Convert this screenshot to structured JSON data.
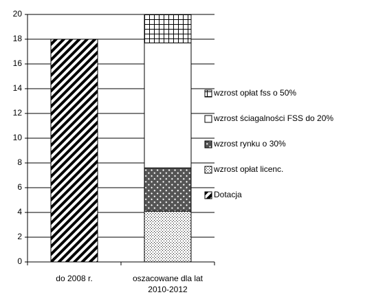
{
  "chart_data": {
    "type": "stacked_bar",
    "categories": [
      "do 2008 r.",
      "oszacowane dla lat 2010-2012"
    ],
    "series": [
      {
        "name": "Dotacja",
        "color": "#000000",
        "pattern": "diagonal",
        "values": [
          18,
          null
        ]
      },
      {
        "name": "wzrost opłat licenc.",
        "color": "#000000",
        "pattern": "dots",
        "values": [
          null,
          4.1
        ]
      },
      {
        "name": "wzrost rynku o 30%",
        "color": "#000000",
        "pattern": "crosshatch",
        "values": [
          null,
          3.5
        ]
      },
      {
        "name": "wzrost ściagalności FSS do 20%",
        "color": "#000000",
        "pattern": "solid-white",
        "values": [
          null,
          10.1
        ]
      },
      {
        "name": "wzrost opłat fss o 50%",
        "color": "#000000",
        "pattern": "grid",
        "values": [
          null,
          2.3
        ]
      }
    ],
    "ylim": [
      0,
      20
    ],
    "yticks": [
      0,
      2,
      4,
      6,
      8,
      10,
      12,
      14,
      16,
      18,
      20
    ],
    "grid": true,
    "legend": "right"
  }
}
